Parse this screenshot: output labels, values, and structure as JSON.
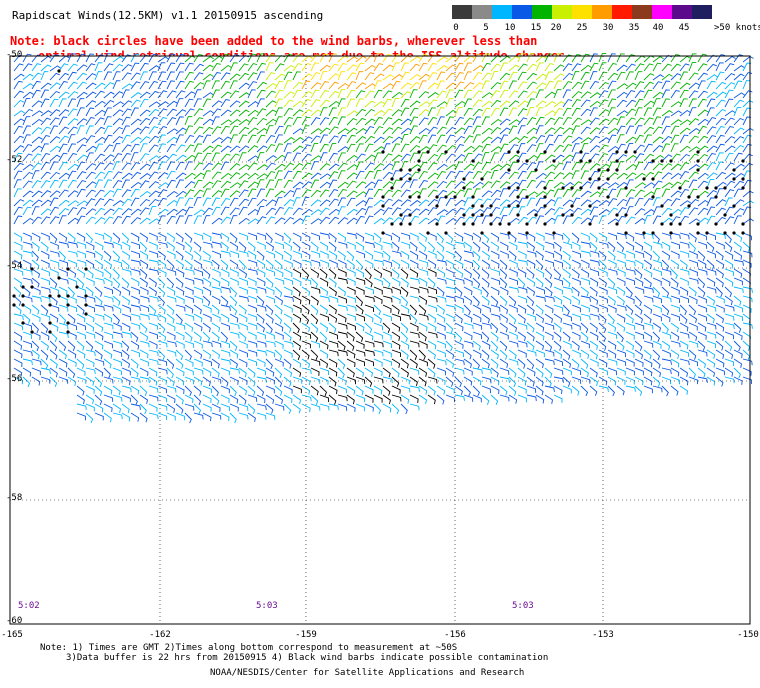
{
  "header": {
    "title": "Rapidscat Winds(12.5KM) v1.1 20150915 ascending",
    "note_line1": "Note: black circles have been added to the wind barbs, wherever less than",
    "note_line2": "optimal wind retrieval conditions are met due to the ISS altitude changes."
  },
  "colorbar": {
    "labels": [
      "0",
      "5",
      "10",
      "15",
      "20",
      "25",
      "30",
      "35",
      "40",
      "45",
      ">50 knots"
    ],
    "colors": [
      "#3a3a3a",
      "#8a8a8a",
      "#00b7ff",
      "#0a58e6",
      "#00b400",
      "#c8f000",
      "#ffe100",
      "#ff9d00",
      "#ff1a00",
      "#8b3a1e",
      "#ff00ff",
      "#5a0a8a",
      "#1e1e60"
    ]
  },
  "map": {
    "lat_labels": [
      "-50",
      "-52",
      "-54",
      "-56",
      "-58",
      "-60"
    ],
    "lon_labels": [
      "-165",
      "-162",
      "-159",
      "-156",
      "-153",
      "-150"
    ],
    "time_labels": [
      "5:02",
      "5:03",
      "5:03"
    ]
  },
  "footer": {
    "line1": "Note: 1) Times are GMT 2)Times along bottom correspond to measurement at ~50S",
    "line2": "3)Data buffer is 22 hrs from 20150915 4) Black wind barbs indicate possible contamination",
    "line3": "NOAA/NESDIS/Center for Satellite Applications and Research"
  }
}
